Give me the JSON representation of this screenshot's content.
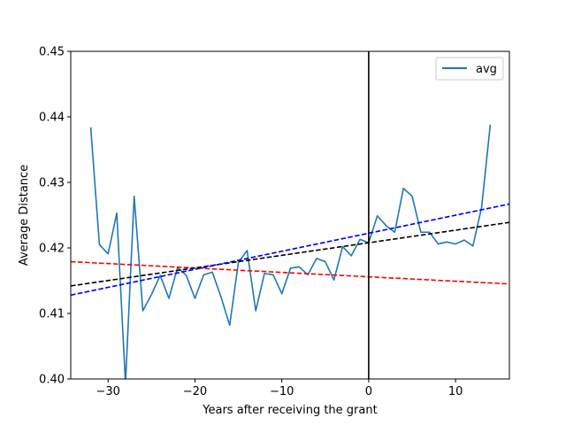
{
  "chart_data": {
    "type": "line",
    "title": "",
    "xlabel": "Years after receiving the grant",
    "ylabel": "Average Distance",
    "xlim": [
      -34.3,
      16.2
    ],
    "ylim": [
      0.4,
      0.45
    ],
    "x_ticks": [
      -30,
      -20,
      -10,
      0,
      10
    ],
    "x_tick_labels": [
      "−30",
      "−20",
      "−10",
      "0",
      "10"
    ],
    "y_ticks": [
      0.4,
      0.41,
      0.42,
      0.43,
      0.44,
      0.45
    ],
    "y_tick_labels": [
      "0.40",
      "0.41",
      "0.42",
      "0.43",
      "0.44",
      "0.45"
    ],
    "grid": false,
    "legend": {
      "position": "top-right",
      "entries": [
        "avg"
      ]
    },
    "series": [
      {
        "name": "avg",
        "color": "#1f77b4",
        "style": "solid",
        "x": [
          -32,
          -31,
          -30,
          -29,
          -28,
          -27,
          -26,
          -25,
          -24,
          -23,
          -22,
          -21,
          -20,
          -19,
          -18,
          -17,
          -16,
          -15,
          -14,
          -13,
          -12,
          -11,
          -10,
          -9,
          -8,
          -7,
          -6,
          -5,
          -4,
          -3,
          -2,
          -1,
          0,
          1,
          2,
          3,
          4,
          5,
          6,
          7,
          8,
          9,
          10,
          11,
          12,
          13,
          14
        ],
        "y": [
          0.4384,
          0.4205,
          0.4191,
          0.4253,
          0.3993,
          0.4279,
          0.4104,
          0.4129,
          0.4158,
          0.4123,
          0.417,
          0.4158,
          0.4123,
          0.4159,
          0.4163,
          0.4125,
          0.4082,
          0.4178,
          0.4196,
          0.4104,
          0.4161,
          0.4159,
          0.413,
          0.4169,
          0.4171,
          0.4159,
          0.4184,
          0.4179,
          0.4151,
          0.4202,
          0.4188,
          0.4213,
          0.4208,
          0.4249,
          0.4234,
          0.4224,
          0.4291,
          0.4279,
          0.4224,
          0.4224,
          0.4206,
          0.4209,
          0.4206,
          0.4212,
          0.4203,
          0.4262,
          0.4388
        ]
      },
      {
        "color": "#ff0000",
        "style": "dashed",
        "x": [
          -34.3,
          16.2
        ],
        "y": [
          0.4179,
          0.4145
        ]
      },
      {
        "color": "#000000",
        "style": "dashed",
        "x": [
          -34.3,
          16.2
        ],
        "y": [
          0.4142,
          0.4239
        ]
      },
      {
        "color": "#0000ff",
        "style": "dashed",
        "x": [
          -34.3,
          16.2
        ],
        "y": [
          0.4128,
          0.4267
        ]
      }
    ],
    "vertical_lines": [
      {
        "x": 0,
        "color": "#000000",
        "style": "solid"
      }
    ]
  }
}
